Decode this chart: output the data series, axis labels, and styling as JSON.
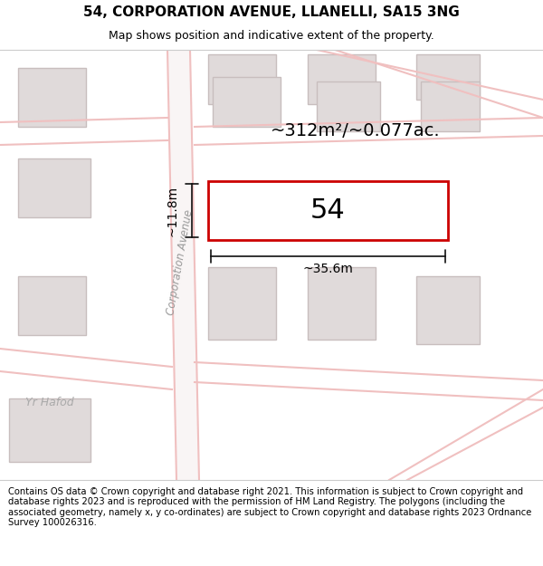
{
  "title_line1": "54, CORPORATION AVENUE, LLANELLI, SA15 3NG",
  "title_line2": "Map shows position and indicative extent of the property.",
  "footer_text": "Contains OS data © Crown copyright and database right 2021. This information is subject to Crown copyright and database rights 2023 and is reproduced with the permission of HM Land Registry. The polygons (including the associated geometry, namely x, y co-ordinates) are subject to Crown copyright and database rights 2023 Ordnance Survey 100026316.",
  "property_label": "54",
  "area_label": "~312m²/~0.077ac.",
  "width_label": "~35.6m",
  "height_label": "~11.8m",
  "street_label": "Corporation Avenue",
  "street_label2": "Yr Hafod",
  "bg_color": "#ffffff",
  "map_bg": "#f7f4f4",
  "building_fill": "#e0dada",
  "building_edge": "#c8bebe",
  "road_color": "#f0c0c0",
  "plot_edge_color": "#cc0000",
  "plot_fill": "#ffffff",
  "dim_color": "#111111",
  "title_fontsize": 11,
  "subtitle_fontsize": 9,
  "footer_fontsize": 7.2
}
